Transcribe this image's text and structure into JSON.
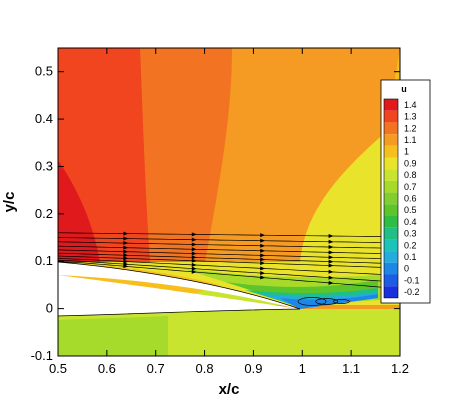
{
  "chart_data": {
    "type": "heatmap",
    "xlabel": "x/c",
    "ylabel": "y/c",
    "xlim": [
      0.5,
      1.2
    ],
    "ylim": [
      -0.1,
      0.55
    ],
    "x_ticks": [
      "0.5",
      "0.6",
      "0.7",
      "0.8",
      "0.9",
      "1",
      "1.1",
      "1.2"
    ],
    "y_ticks": [
      "-0.1",
      "0",
      "0.1",
      "0.2",
      "0.3",
      "0.4",
      "0.5"
    ],
    "legend": {
      "title": "u",
      "placement": "right",
      "levels": [
        "1.4",
        "1.3",
        "1.2",
        "1.1",
        "1",
        "0.9",
        "0.8",
        "0.7",
        "0.6",
        "0.5",
        "0.4",
        "0.3",
        "0.2",
        "0.1",
        "0",
        "-0.1",
        "-0.2"
      ],
      "colors": [
        "#e0191d",
        "#f0451e",
        "#f27321",
        "#f59a22",
        "#f6bf1e",
        "#e9e42b",
        "#c8e42e",
        "#a6da2b",
        "#81cf2e",
        "#5dc42a",
        "#2fbe45",
        "#1fbf86",
        "#1dc2b9",
        "#23acdd",
        "#1d87e8",
        "#1c5de4",
        "#1a30dd"
      ]
    }
  }
}
